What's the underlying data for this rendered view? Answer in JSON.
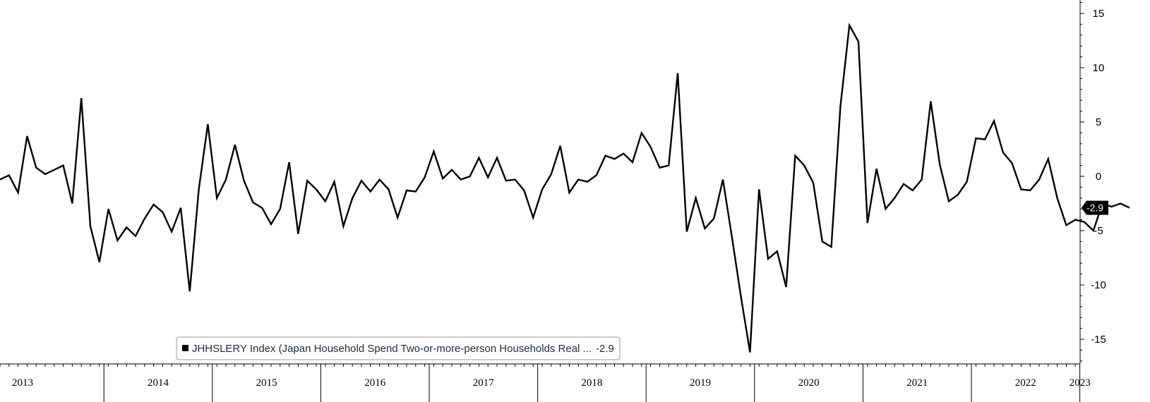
{
  "chart_data": {
    "type": "line",
    "title": "",
    "xlabel": "",
    "ylabel": "",
    "x_start": "2013-01",
    "x_frequency": "monthly",
    "ylim": [
      -17,
      16
    ],
    "yticks": [
      15,
      10,
      5,
      0,
      -5,
      -10,
      -15
    ],
    "ytick_labels": [
      "15",
      "10",
      "5",
      "0",
      "-5",
      "-10",
      "-15"
    ],
    "years": [
      "2013",
      "2014",
      "2015",
      "2016",
      "2017",
      "2018",
      "2019",
      "2020",
      "2021",
      "2022",
      "2023"
    ],
    "grid": false,
    "legend_position": "bottom-left",
    "series": [
      {
        "name": "JHHSLERY Index (Japan Household Spend Two-or-more-person Households Real ...",
        "color": "#000000",
        "values": [
          -0.3,
          0.1,
          -1.5,
          3.7,
          0.8,
          0.2,
          0.6,
          1.0,
          -2.5,
          7.2,
          -4.6,
          -7.9,
          -3.0,
          -5.9,
          -4.7,
          -5.5,
          -3.9,
          -2.6,
          -3.3,
          -5.1,
          -2.9,
          -10.6,
          -1.2,
          4.8,
          -2.0,
          -0.3,
          2.9,
          -0.4,
          -2.4,
          -2.9,
          -4.4,
          -3.0,
          1.3,
          -5.3,
          -0.4,
          -1.2,
          -2.3,
          -0.5,
          -4.6,
          -2.0,
          -0.4,
          -1.4,
          -0.3,
          -1.2,
          -3.8,
          -1.3,
          -1.4,
          -0.1,
          2.3,
          -0.2,
          0.6,
          -0.3,
          0.0,
          1.7,
          -0.1,
          1.7,
          -0.4,
          -0.3,
          -1.3,
          -3.8,
          -1.2,
          0.2,
          2.8,
          -1.5,
          -0.3,
          -0.5,
          0.1,
          1.9,
          1.6,
          2.1,
          1.3,
          4.0,
          2.7,
          0.8,
          1.0,
          9.5,
          -5.1,
          -2.0,
          -4.8,
          -3.9,
          -0.3,
          -5.6,
          -11.1,
          -16.2,
          -1.2,
          -7.6,
          -6.9,
          -10.2,
          1.9,
          1.0,
          -0.6,
          -6.0,
          -6.5,
          6.4,
          13.9,
          12.4,
          -4.3,
          0.7,
          -3.0,
          -2.0,
          -0.7,
          -1.3,
          -0.3,
          6.9,
          1.1,
          -2.3,
          -1.7,
          -0.5,
          3.5,
          3.4,
          5.1,
          2.2,
          1.2,
          -1.2,
          -1.3,
          -0.3,
          1.6,
          -2.0,
          -4.5,
          -4.0,
          -4.2,
          -5.0,
          -2.5,
          -2.8,
          -2.5,
          -2.9
        ]
      }
    ],
    "last_value_label": "-2.9",
    "legend_value": "-2.9"
  }
}
